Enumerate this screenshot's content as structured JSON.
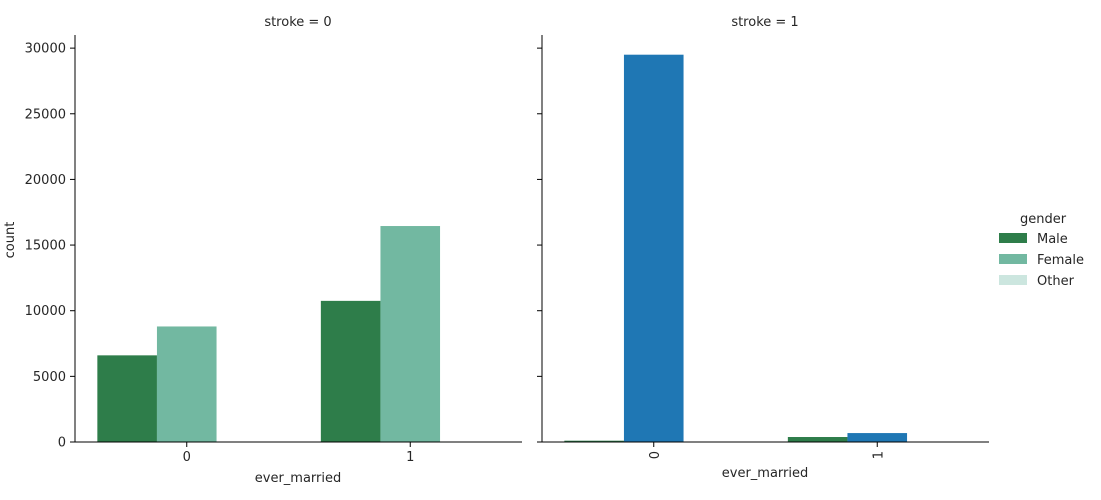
{
  "chart_data": [
    {
      "type": "bar",
      "title": "stroke = 0",
      "xlabel": "ever_married",
      "ylabel": "count",
      "categories": [
        "0",
        "1"
      ],
      "ylim": [
        0,
        31000
      ],
      "yticks": [
        0,
        5000,
        10000,
        15000,
        20000,
        25000,
        30000
      ],
      "series": [
        {
          "name": "Male",
          "values": [
            6600,
            10750
          ]
        },
        {
          "name": "Female",
          "values": [
            8800,
            16450
          ]
        },
        {
          "name": "Other",
          "values": [
            0,
            0
          ]
        }
      ]
    },
    {
      "type": "bar",
      "title": "stroke = 1",
      "xlabel": "ever_married",
      "ylabel": "",
      "categories": [
        "0",
        "1"
      ],
      "ylim": [
        0,
        31000
      ],
      "yticks": [
        0,
        5000,
        10000,
        15000,
        20000,
        25000,
        30000
      ],
      "series": [
        {
          "name": "Male",
          "values": [
            100,
            380
          ]
        },
        {
          "name": "Female",
          "values": [
            29500,
            680
          ]
        },
        {
          "name": "Other",
          "values": [
            0,
            0
          ]
        }
      ]
    }
  ],
  "legend": {
    "title": "gender",
    "placement": "right",
    "items": [
      {
        "label": "Male",
        "color": "#2e7d4a"
      },
      {
        "label": "Female",
        "color": "#72b8a1"
      },
      {
        "label": "Other",
        "color": "#cce6df"
      }
    ]
  },
  "colors": {
    "Male": "#2e7d4a",
    "Female_panel0": "#72b8a1",
    "Female_panel1": "#1f77b4",
    "Other": "#cce6df"
  }
}
